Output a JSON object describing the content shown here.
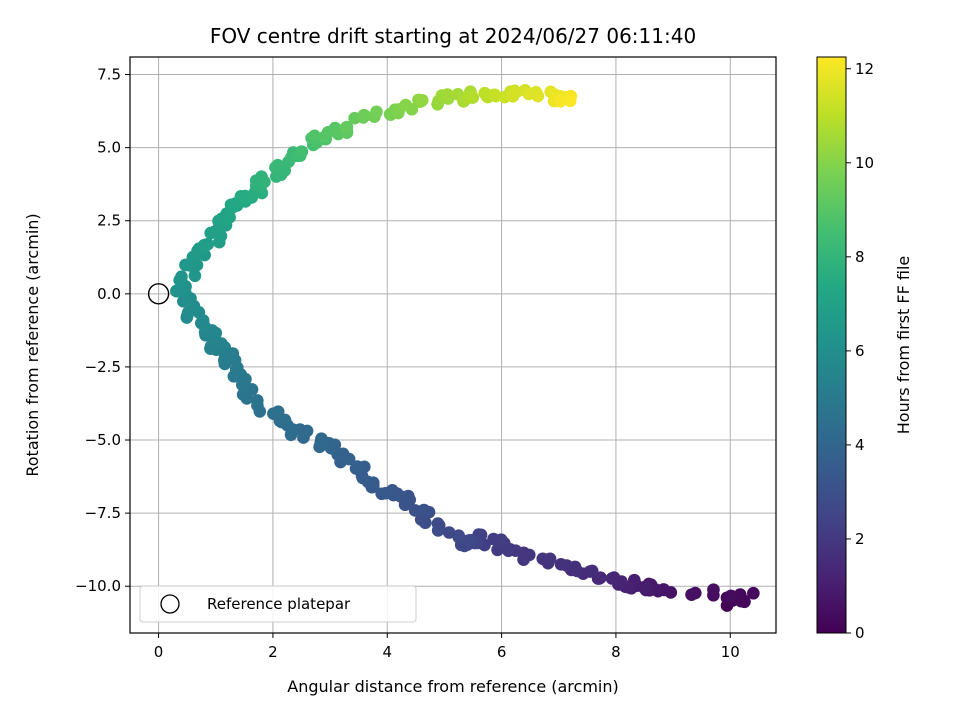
{
  "chart_data": {
    "type": "scatter",
    "title": "FOV centre drift starting at 2024/06/27 06:11:40",
    "xlabel": "Angular distance from reference (arcmin)",
    "ylabel": "Rotation from reference (arcmin)",
    "xlim": [
      -0.5,
      10.8
    ],
    "ylim": [
      -11.6,
      8.1
    ],
    "x_ticks": [
      0,
      2,
      4,
      6,
      8,
      10
    ],
    "x_tick_labels": [
      "0",
      "2",
      "4",
      "6",
      "8",
      "10"
    ],
    "y_ticks": [
      7.5,
      5.0,
      2.5,
      0.0,
      -2.5,
      -5.0,
      -7.5,
      -10.0
    ],
    "y_tick_labels": [
      "7.5",
      "5.0",
      "2.5",
      "0.0",
      "−2.5",
      "−5.0",
      "−7.5",
      "−10.0"
    ],
    "grid": true,
    "colormap": "viridis",
    "colorbar": {
      "label": "Hours from first FF file",
      "range": [
        0,
        12.25
      ],
      "ticks": [
        0,
        2,
        4,
        6,
        8,
        10,
        12
      ],
      "tick_labels": [
        "0",
        "2",
        "4",
        "6",
        "8",
        "10",
        "12"
      ]
    },
    "legend": {
      "placement": "lower-left",
      "entries": [
        {
          "label": "Reference platepar",
          "marker": "open-circle"
        }
      ]
    },
    "reference_point": {
      "x": 0,
      "y": 0
    },
    "anchor_points": [
      {
        "t": 0.0,
        "x": 9.9,
        "y": -10.6
      },
      {
        "t": 0.3,
        "x": 10.3,
        "y": -10.35
      },
      {
        "t": 0.7,
        "x": 8.7,
        "y": -10.1
      },
      {
        "t": 1.0,
        "x": 8.4,
        "y": -9.95
      },
      {
        "t": 1.3,
        "x": 7.9,
        "y": -9.8
      },
      {
        "t": 1.7,
        "x": 7.2,
        "y": -9.4
      },
      {
        "t": 2.0,
        "x": 6.3,
        "y": -8.9
      },
      {
        "t": 2.3,
        "x": 5.6,
        "y": -8.3
      },
      {
        "t": 2.6,
        "x": 5.4,
        "y": -8.6
      },
      {
        "t": 2.9,
        "x": 4.7,
        "y": -7.6
      },
      {
        "t": 3.2,
        "x": 4.3,
        "y": -7.0
      },
      {
        "t": 3.5,
        "x": 3.7,
        "y": -6.5
      },
      {
        "t": 3.8,
        "x": 3.2,
        "y": -5.5
      },
      {
        "t": 4.1,
        "x": 2.8,
        "y": -5.1
      },
      {
        "t": 4.4,
        "x": 2.2,
        "y": -4.5
      },
      {
        "t": 4.7,
        "x": 1.6,
        "y": -3.4
      },
      {
        "t": 5.0,
        "x": 1.3,
        "y": -2.5
      },
      {
        "t": 5.3,
        "x": 1.1,
        "y": -1.9
      },
      {
        "t": 5.6,
        "x": 0.8,
        "y": -1.3
      },
      {
        "t": 5.9,
        "x": 0.5,
        "y": -0.4
      },
      {
        "t": 6.2,
        "x": 0.4,
        "y": 0.3
      },
      {
        "t": 6.5,
        "x": 0.65,
        "y": 1.1
      },
      {
        "t": 6.8,
        "x": 0.95,
        "y": 1.9
      },
      {
        "t": 7.1,
        "x": 1.2,
        "y": 2.7
      },
      {
        "t": 7.5,
        "x": 1.5,
        "y": 3.3
      },
      {
        "t": 7.9,
        "x": 1.9,
        "y": 3.9
      },
      {
        "t": 8.3,
        "x": 2.3,
        "y": 4.7
      },
      {
        "t": 8.8,
        "x": 2.8,
        "y": 5.4
      },
      {
        "t": 9.3,
        "x": 3.4,
        "y": 5.8
      },
      {
        "t": 9.8,
        "x": 4.1,
        "y": 6.3
      },
      {
        "t": 10.3,
        "x": 4.8,
        "y": 6.6
      },
      {
        "t": 10.8,
        "x": 5.5,
        "y": 6.8
      },
      {
        "t": 11.3,
        "x": 6.1,
        "y": 6.85
      },
      {
        "t": 11.8,
        "x": 6.8,
        "y": 6.75
      },
      {
        "t": 12.2,
        "x": 7.2,
        "y": 6.6
      }
    ],
    "points_per_segment": 9
  }
}
